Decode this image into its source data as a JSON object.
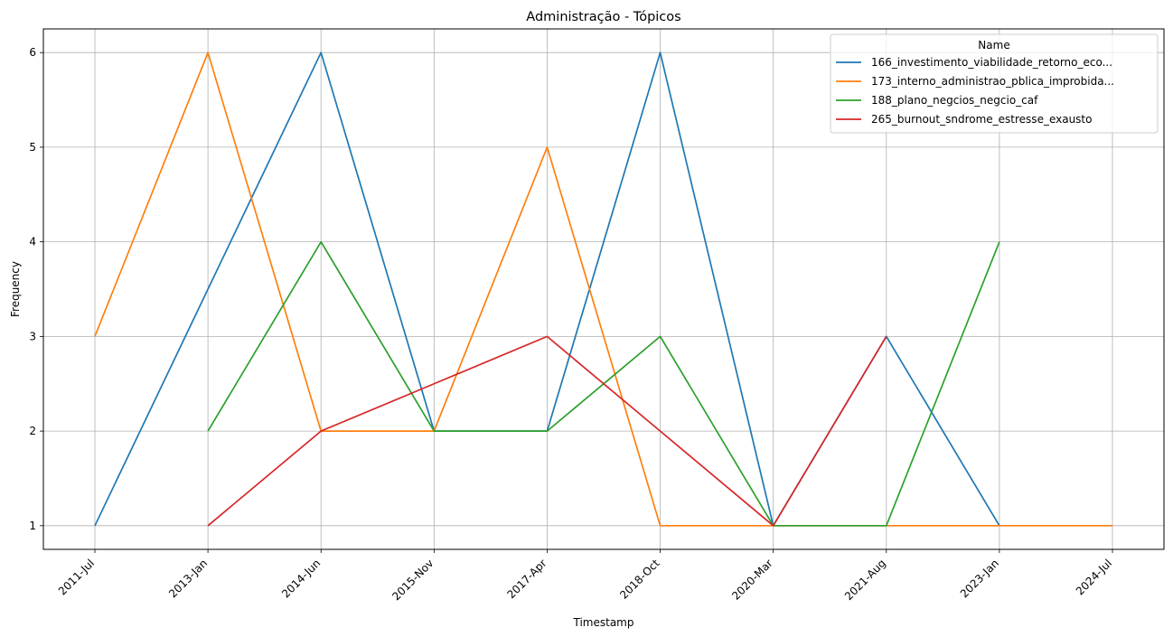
{
  "chart_data": {
    "type": "line",
    "title": "Administração - Tópicos",
    "xlabel": "Timestamp",
    "ylabel": "Frequency",
    "categories": [
      "2011-Jul",
      "2013-Jan",
      "2014-Jun",
      "2015-Nov",
      "2017-Apr",
      "2018-Oct",
      "2020-Mar",
      "2021-Aug",
      "2023-Jan",
      "2024-Jul"
    ],
    "yticks": [
      1,
      2,
      3,
      4,
      5,
      6
    ],
    "ylim": [
      0.75,
      6.25
    ],
    "grid": true,
    "legend": {
      "title": "Name",
      "placement": "top-right"
    },
    "series": [
      {
        "name": "166_investimento_viabilidade_retorno_eco...",
        "color": "#1f77b4",
        "values": [
          1,
          3.5,
          6,
          2,
          2,
          6,
          1,
          3,
          1,
          null
        ]
      },
      {
        "name": "173_interno_administrao_pblica_improbida...",
        "color": "#ff7f0e",
        "values": [
          3,
          6,
          2,
          2,
          5,
          1,
          1,
          1,
          1,
          1
        ]
      },
      {
        "name": "188_plano_negcios_negcio_caf",
        "color": "#2ca02c",
        "values": [
          null,
          2,
          4,
          2,
          2,
          3,
          1,
          1,
          4,
          null
        ]
      },
      {
        "name": "265_burnout_sndrome_estresse_exausto",
        "color": "#d62728",
        "values": [
          null,
          1,
          2,
          2.5,
          3,
          2,
          1,
          3,
          null,
          null
        ]
      }
    ]
  }
}
